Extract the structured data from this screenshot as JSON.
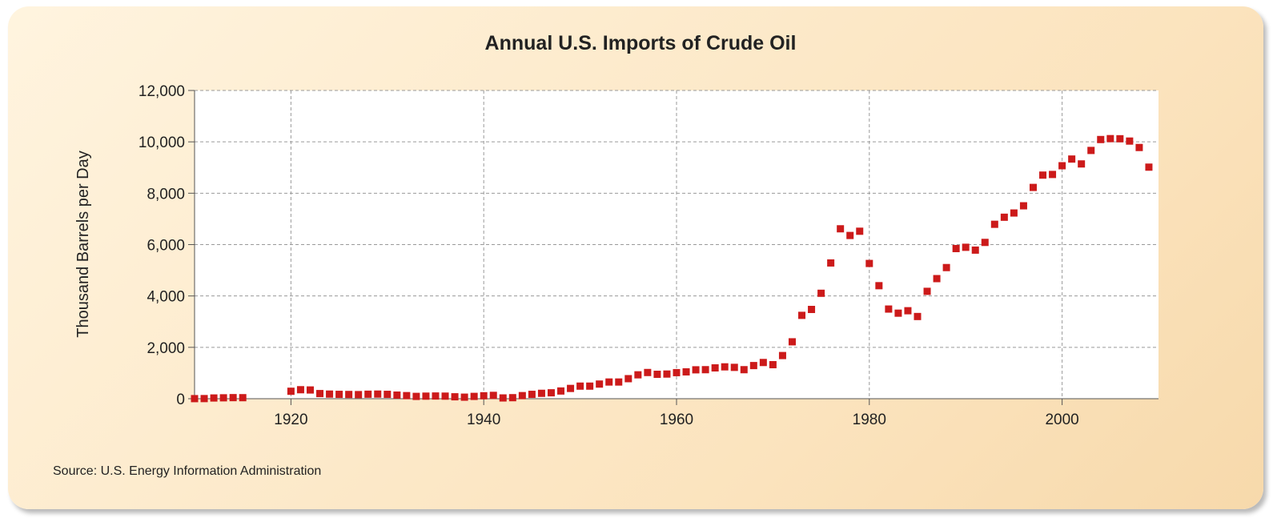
{
  "chart_data": {
    "type": "scatter",
    "title": "Annual U.S. Imports of Crude Oil",
    "xlabel": "",
    "ylabel": "Thousand Barrels per Day",
    "source": "Source: U.S. Energy Information Administration",
    "xlim": [
      1910,
      2010
    ],
    "ylim": [
      0,
      12000
    ],
    "x_ticks": [
      1920,
      1940,
      1960,
      1980,
      2000
    ],
    "x_tick_labels": [
      "1920",
      "1940",
      "1960",
      "1980",
      "2000"
    ],
    "y_ticks": [
      0,
      2000,
      4000,
      6000,
      8000,
      10000,
      12000
    ],
    "y_tick_labels": [
      "0",
      "2,000",
      "4,000",
      "6,000",
      "8,000",
      "10,000",
      "12,000"
    ],
    "grid": true,
    "marker_color": "#cc1a1a",
    "series": [
      {
        "name": "",
        "x": [
          1910,
          1911,
          1912,
          1913,
          1914,
          1915,
          1920,
          1921,
          1922,
          1923,
          1924,
          1925,
          1926,
          1927,
          1928,
          1929,
          1930,
          1931,
          1932,
          1933,
          1934,
          1935,
          1936,
          1937,
          1938,
          1939,
          1940,
          1941,
          1942,
          1943,
          1944,
          1945,
          1946,
          1947,
          1948,
          1949,
          1950,
          1951,
          1952,
          1953,
          1954,
          1955,
          1956,
          1957,
          1958,
          1959,
          1960,
          1961,
          1962,
          1963,
          1964,
          1965,
          1966,
          1967,
          1968,
          1969,
          1970,
          1971,
          1972,
          1973,
          1974,
          1975,
          1976,
          1977,
          1978,
          1979,
          1980,
          1981,
          1982,
          1983,
          1984,
          1985,
          1986,
          1987,
          1988,
          1989,
          1990,
          1991,
          1992,
          1993,
          1994,
          1995,
          1996,
          1997,
          1998,
          1999,
          2000,
          2001,
          2002,
          2003,
          2004,
          2005,
          2006,
          2007,
          2008,
          2009
        ],
        "y": [
          3,
          5,
          28,
          35,
          42,
          40,
          290,
          350,
          340,
          200,
          180,
          170,
          165,
          160,
          175,
          180,
          170,
          140,
          120,
          90,
          100,
          105,
          100,
          75,
          60,
          90,
          115,
          130,
          30,
          40,
          120,
          170,
          210,
          230,
          300,
          400,
          490,
          490,
          570,
          650,
          650,
          780,
          930,
          1020,
          950,
          960,
          1015,
          1045,
          1125,
          1130,
          1200,
          1240,
          1220,
          1130,
          1290,
          1410,
          1325,
          1680,
          2215,
          3245,
          3475,
          4105,
          5285,
          6615,
          6355,
          6520,
          5265,
          4400,
          3490,
          3330,
          3425,
          3200,
          4180,
          4675,
          5105,
          5845,
          5895,
          5785,
          6085,
          6790,
          7065,
          7230,
          7510,
          8225,
          8705,
          8730,
          9070,
          9330,
          9140,
          9665,
          10090,
          10125,
          10120,
          10030,
          9780,
          9015
        ]
      }
    ]
  }
}
